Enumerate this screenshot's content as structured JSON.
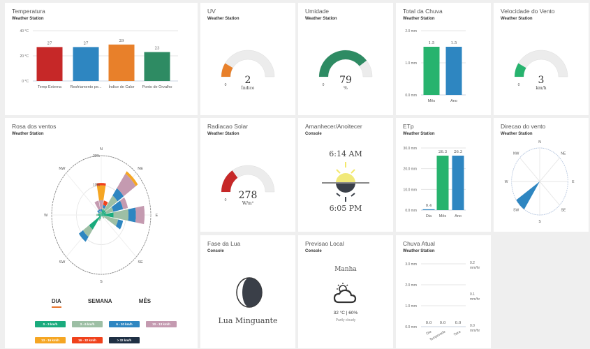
{
  "colors": {
    "bg": "#efefef",
    "gauge_track": "#ececec",
    "accent_tab": "#e8742c"
  },
  "cards": {
    "temperature": {
      "title": "Temperatura",
      "subtitle": "Weather Station"
    },
    "uv": {
      "title": "UV",
      "subtitle": "Weather Station",
      "min_label": "0",
      "value": "2",
      "unit": "Índice",
      "fill": 0.17,
      "color": "#e8802a"
    },
    "humidity": {
      "title": "Umidade",
      "subtitle": "Weather Station",
      "min_label": "0",
      "value": "79",
      "unit": "%",
      "fill": 0.79,
      "color": "#2e8b63"
    },
    "rain_total": {
      "title": "Total da Chuva",
      "subtitle": "Weather Station"
    },
    "wind_speed": {
      "title": "Velocidade do Vento",
      "subtitle": "Weather Station",
      "min_label": "0",
      "value": "3",
      "unit": "km/h",
      "fill": 0.17,
      "color": "#27b36e"
    },
    "wind_rose": {
      "title": "Rosa dos ventos",
      "subtitle": "Weather Station",
      "tabs": [
        {
          "label": "DIA",
          "active": true
        },
        {
          "label": "SEMANA",
          "active": false
        },
        {
          "label": "MÊS",
          "active": false
        }
      ]
    },
    "solar": {
      "title": "Radiacao Solar",
      "subtitle": "Weather Station",
      "min_label": "0",
      "value": "278",
      "unit": "W/m²",
      "fill": 0.3,
      "color": "#c62828"
    },
    "sun": {
      "title": "Amanhecer/Anoitecer",
      "subtitle": "Console",
      "sunrise": "6:14 AM",
      "sunset": "6:05 PM"
    },
    "etp": {
      "title": "ETp",
      "subtitle": "Weather Station"
    },
    "wind_dir": {
      "title": "Direcao do vento",
      "subtitle": "Weather Station",
      "direction_deg": 225,
      "labels": [
        "N",
        "NE",
        "E",
        "SE",
        "S",
        "SW",
        "W",
        "NW"
      ]
    },
    "moon": {
      "title": "Fase da Lua",
      "subtitle": "Console",
      "phase": "Lua Minguante"
    },
    "forecast": {
      "title": "Previsao Local",
      "subtitle": "Console",
      "period": "Manha",
      "temp_humidity": "32 °C | 60%",
      "condition": "Partly cloudy"
    },
    "rain_now": {
      "title": "Chuva Atual",
      "subtitle": "Weather Station"
    }
  },
  "chart_data": [
    {
      "id": "temperature",
      "type": "bar",
      "categories": [
        "Temp Externa",
        "Resfriamento pe...",
        "Índice de Calor",
        "Ponto de Orvalho"
      ],
      "values": [
        27,
        27,
        29,
        23
      ],
      "value_labels": [
        "27",
        "27",
        "29",
        "23"
      ],
      "colors": [
        "#c62828",
        "#2e86c1",
        "#e8802a",
        "#2e8b63"
      ],
      "ylim": [
        0,
        40
      ],
      "yticks": [
        0,
        20,
        40
      ],
      "ytick_labels": [
        "0 °C",
        "20 °C",
        "40 °C"
      ]
    },
    {
      "id": "rain_total",
      "type": "bar",
      "categories": [
        "Mês",
        "Ano"
      ],
      "values": [
        1.5,
        1.5
      ],
      "value_labels": [
        "1.5",
        "1.5"
      ],
      "colors": [
        "#27b36e",
        "#2e86c1"
      ],
      "ylim": [
        0,
        2
      ],
      "yticks": [
        0,
        1,
        2
      ],
      "ytick_labels": [
        "0.0 mm",
        "1.0 mm",
        "2.0 mm"
      ]
    },
    {
      "id": "etp",
      "type": "bar",
      "categories": [
        "Dia",
        "Mês",
        "Ano"
      ],
      "values": [
        0.4,
        26.3,
        26.3
      ],
      "value_labels": [
        "0.4",
        "26.3",
        "26.3"
      ],
      "colors": [
        "#2e86c1",
        "#27b36e",
        "#2e86c1"
      ],
      "ylim": [
        0,
        30
      ],
      "yticks": [
        0,
        10,
        20,
        30
      ],
      "ytick_labels": [
        "0.0 mm",
        "10.0 mm",
        "20.0 mm",
        "30.0 mm"
      ]
    },
    {
      "id": "rain_now",
      "type": "bar",
      "categories": [
        "Dia",
        "Temporada",
        "Taxa"
      ],
      "values": [
        0,
        0,
        0
      ],
      "value_labels": [
        "0.0",
        "0.0",
        "0.0"
      ],
      "ylim": [
        0,
        3
      ],
      "yticks": [
        0,
        1,
        2,
        3
      ],
      "ytick_labels": [
        "0.0 mm",
        "1.0 mm",
        "2.0 mm",
        "3.0 mm"
      ],
      "y2_ticks": [
        0,
        0.1,
        0.2
      ],
      "y2_tick_labels": [
        "0.0",
        "0.1",
        "0.2"
      ],
      "y2_unit": "mm/hr"
    },
    {
      "id": "wind_rose",
      "type": "polar-stacked-bar",
      "rlim": [
        0,
        20
      ],
      "r_tick_labels": [
        "10%",
        "20%"
      ],
      "directions": [
        "N",
        "NNE",
        "NE",
        "ENE",
        "E",
        "ESE",
        "SE",
        "SSE",
        "S",
        "SSW",
        "SW",
        "WSW",
        "W",
        "WNW",
        "NW",
        "NNW"
      ],
      "axis_labels": [
        "N",
        "NE",
        "E",
        "SE",
        "S",
        "SW",
        "W",
        "NW"
      ],
      "series": [
        {
          "name": "0 - 3 km/h",
          "color": "#1aab7d",
          "values": [
            0.5,
            2,
            2,
            2,
            5,
            1,
            0.5,
            0.5,
            0.5,
            1.5,
            6,
            1,
            1.5,
            1,
            0.5,
            1
          ]
        },
        {
          "name": "3 - 6 km/h",
          "color": "#9dbfa5",
          "values": [
            0.5,
            0.5,
            6,
            3,
            6,
            6,
            1,
            0,
            0,
            0.5,
            3,
            0,
            0.5,
            0.5,
            0.5,
            0.5
          ]
        },
        {
          "name": "6 - 10 km/h",
          "color": "#2e86c1",
          "values": [
            1,
            1,
            3,
            4,
            3,
            2,
            0,
            0,
            0,
            0,
            2,
            0,
            0,
            0,
            1,
            0.5
          ]
        },
        {
          "name": "10 - 13 km/h",
          "color": "#c49ab0",
          "values": [
            3,
            0,
            6,
            2,
            3.5,
            0,
            0,
            0,
            0,
            0,
            0,
            0,
            0,
            0,
            0,
            3
          ]
        },
        {
          "name": "13 - 16 km/h",
          "color": "#f5a623",
          "values": [
            5,
            0,
            1,
            0,
            0,
            0,
            0,
            0,
            0,
            0,
            0,
            0,
            0,
            0,
            0,
            0
          ]
        },
        {
          "name": "16 - 32 km/h",
          "color": "#f0421c",
          "values": [
            0.8,
            1.5,
            0,
            0,
            0,
            0,
            0,
            0,
            0,
            0,
            0,
            0,
            0,
            0,
            0,
            0
          ]
        },
        {
          "name": "> 32 km/h",
          "color": "#1f3044",
          "values": [
            0,
            0,
            0,
            0,
            0,
            0,
            0,
            0,
            0,
            0,
            0,
            0,
            0,
            0,
            0,
            0
          ]
        }
      ]
    }
  ]
}
